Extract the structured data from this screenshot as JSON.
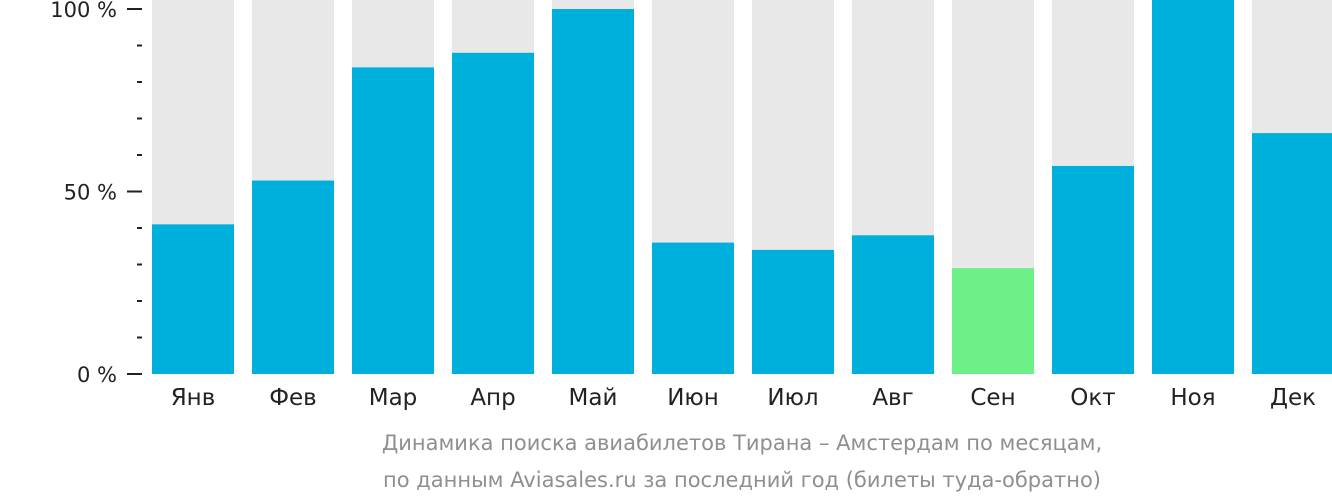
{
  "chart_data": {
    "type": "bar",
    "categories": [
      "Янв",
      "Фев",
      "Мар",
      "Апр",
      "Май",
      "Июн",
      "Июл",
      "Авг",
      "Сен",
      "Окт",
      "Ноя",
      "Дек"
    ],
    "values": [
      41,
      53,
      84,
      88,
      100,
      36,
      34,
      38,
      29,
      57,
      103,
      66
    ],
    "ylim": [
      0,
      100
    ],
    "yticks": [
      {
        "value": 0,
        "label": "0 %"
      },
      {
        "value": 50,
        "label": "50 %"
      },
      {
        "value": 100,
        "label": "100 %"
      }
    ],
    "minor_tick_step": 10,
    "highlight_index": 8,
    "colors": {
      "bar": "#00b0dc",
      "highlight": "#6cf087",
      "background_bar": "#e8e8e8",
      "axis": "#222222"
    }
  },
  "caption": {
    "line1": "Динамика поиска авиабилетов Тирана – Амстердам по месяцам,",
    "line2": "по данным Aviasales.ru за последний год (билеты туда-обратно)"
  }
}
